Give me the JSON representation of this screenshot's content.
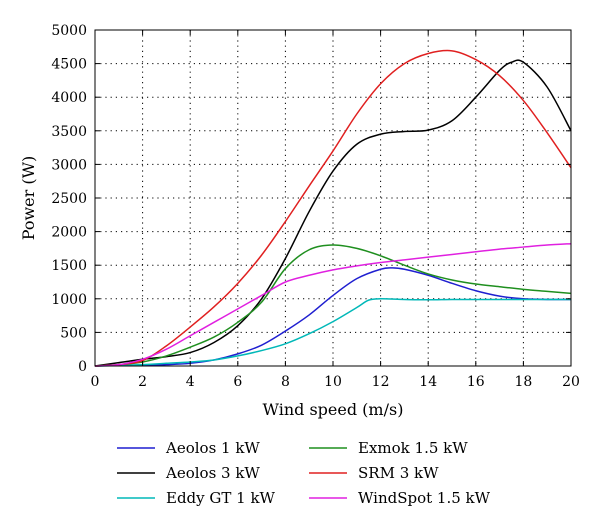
{
  "chart_data": {
    "type": "line",
    "xlabel": "Wind speed (m/s)",
    "ylabel": "Power (W)",
    "xlim": [
      0,
      20
    ],
    "ylim": [
      0,
      5000
    ],
    "xticks": [
      "0",
      "2",
      "4",
      "6",
      "8",
      "10",
      "12",
      "14",
      "16",
      "18",
      "20"
    ],
    "yticks": [
      "0",
      "500",
      "1000",
      "1500",
      "2000",
      "2500",
      "3000",
      "3500",
      "4000",
      "4500",
      "5000"
    ],
    "grid": true,
    "legend_position": "below-plot",
    "series": [
      {
        "name": "Aeolos 1 kW",
        "color": "#1f1fd0",
        "x": [
          0,
          1,
          2,
          3,
          4,
          5,
          6,
          7,
          8,
          9,
          10,
          11,
          12,
          12.5,
          13,
          14,
          15,
          16,
          17,
          18,
          19,
          20
        ],
        "y": [
          0,
          5,
          10,
          20,
          40,
          90,
          180,
          310,
          520,
          760,
          1050,
          1300,
          1440,
          1460,
          1440,
          1350,
          1230,
          1120,
          1040,
          1000,
          990,
          990
        ]
      },
      {
        "name": "Aeolos 3 kW",
        "color": "#000000",
        "x": [
          0,
          1,
          2,
          3,
          4,
          5,
          6,
          7,
          8,
          9,
          10,
          11,
          12,
          13,
          14,
          15,
          16,
          17,
          17.5,
          18,
          19,
          20
        ],
        "y": [
          0,
          50,
          100,
          140,
          200,
          350,
          600,
          1000,
          1600,
          2300,
          2900,
          3300,
          3450,
          3490,
          3510,
          3650,
          4000,
          4400,
          4520,
          4520,
          4150,
          3500
        ]
      },
      {
        "name": "Eddy GT 1 kW",
        "color": "#00b8b8",
        "x": [
          0,
          2,
          3,
          4,
          5,
          6,
          7,
          8,
          9,
          10,
          11,
          11.5,
          12,
          13,
          14,
          15,
          16,
          17,
          18,
          19,
          20
        ],
        "y": [
          0,
          20,
          40,
          60,
          90,
          150,
          230,
          330,
          480,
          660,
          870,
          980,
          1000,
          990,
          985,
          990,
          990,
          990,
          990,
          990,
          990
        ]
      },
      {
        "name": "Exmok 1.5 kW",
        "color": "#1f8f1f",
        "x": [
          0,
          1,
          2,
          3,
          4,
          5,
          6,
          7,
          8,
          9,
          10,
          11,
          12,
          13,
          14,
          15,
          16,
          17,
          18,
          19,
          20
        ],
        "y": [
          0,
          20,
          60,
          150,
          280,
          430,
          650,
          950,
          1450,
          1730,
          1800,
          1750,
          1640,
          1500,
          1370,
          1280,
          1220,
          1180,
          1140,
          1110,
          1080
        ]
      },
      {
        "name": "SRM 3 kW",
        "color": "#e02020",
        "x": [
          0,
          1,
          2,
          3,
          4,
          5,
          6,
          7,
          8,
          9,
          10,
          11,
          12,
          13,
          14,
          15,
          16,
          17,
          18,
          19,
          20
        ],
        "y": [
          0,
          20,
          80,
          300,
          580,
          880,
          1230,
          1650,
          2150,
          2680,
          3200,
          3750,
          4200,
          4500,
          4650,
          4690,
          4560,
          4320,
          3950,
          3470,
          2950
        ]
      },
      {
        "name": "WindSpot 1.5 kW",
        "color": "#e020e0",
        "x": [
          0,
          1,
          2,
          3,
          4,
          5,
          6,
          7,
          8,
          9,
          10,
          11,
          12,
          13,
          14,
          15,
          16,
          17,
          18,
          19,
          20
        ],
        "y": [
          0,
          20,
          100,
          250,
          450,
          650,
          850,
          1050,
          1250,
          1350,
          1430,
          1490,
          1540,
          1580,
          1620,
          1660,
          1700,
          1740,
          1770,
          1800,
          1820
        ]
      }
    ]
  }
}
